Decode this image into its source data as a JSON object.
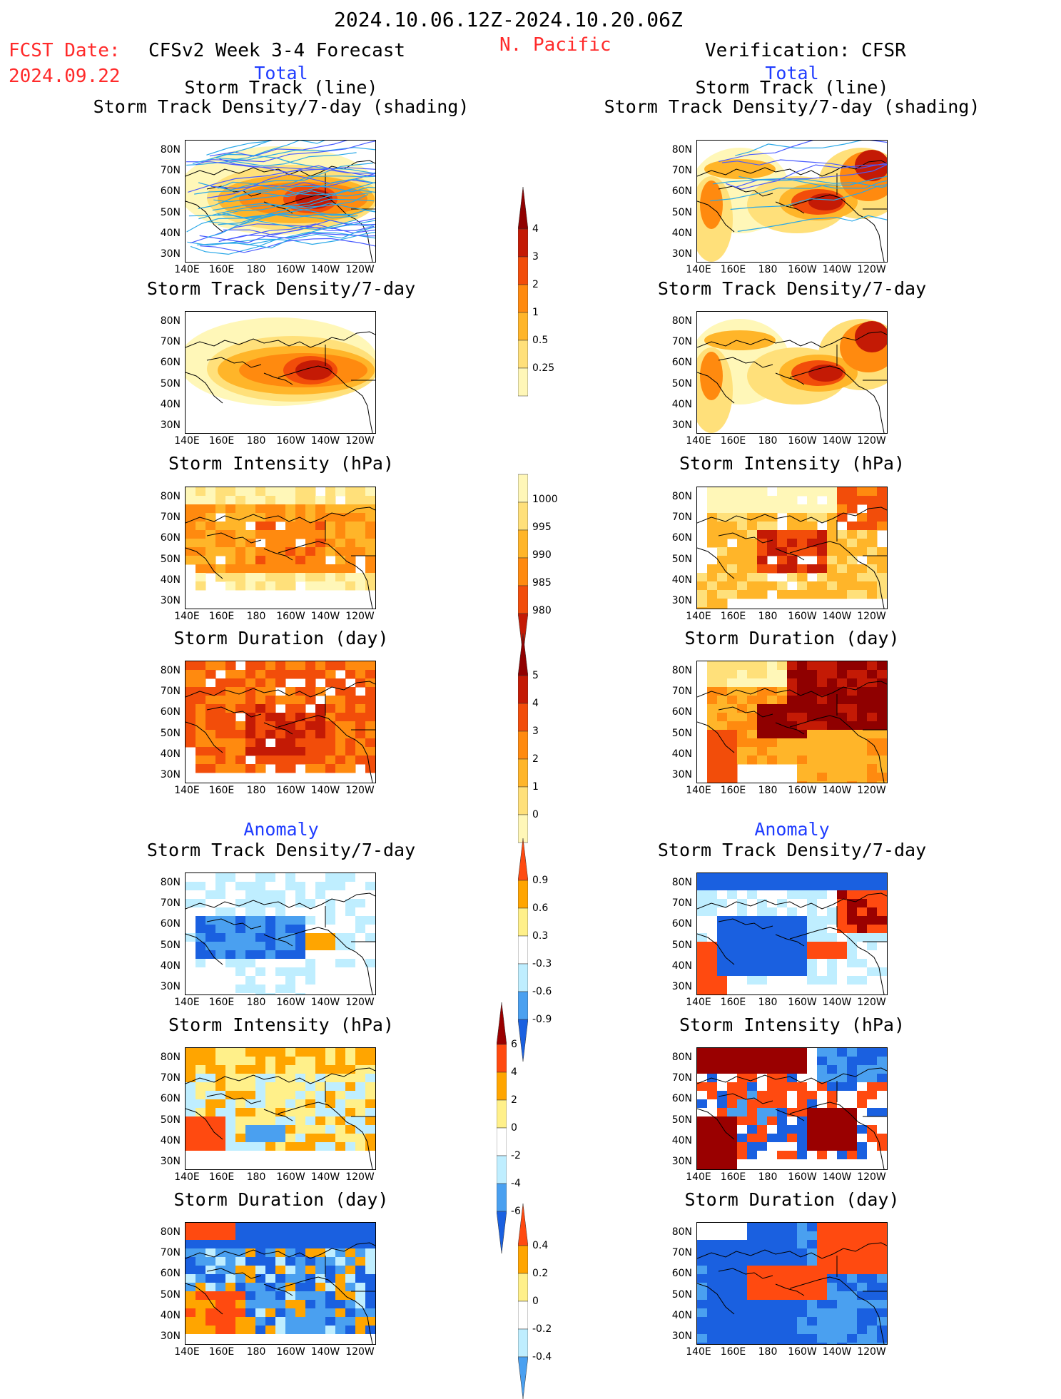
{
  "header": {
    "period": "2024.10.06.12Z-2024.10.20.06Z",
    "fcst_label": "FCST Date:",
    "fcst_date": "2024.09.22",
    "left_title": "CFSv2 Week 3-4 Forecast",
    "region": "N. Pacific",
    "right_title": "Verification: CFSR",
    "total_left": "Total",
    "total_right": "Total",
    "anomaly_left": "Anomaly",
    "anomaly_right": "Anomaly"
  },
  "panels": {
    "track_line_title1": "Storm Track (line)",
    "track_line_title2": "Storm Track Density/7-day (shading)",
    "density_title": "Storm Track Density/7-day",
    "intensity_title": "Storm Intensity (hPa)",
    "duration_title": "Storm Duration (day)"
  },
  "axes": {
    "lat": [
      "80N",
      "70N",
      "60N",
      "50N",
      "40N",
      "30N"
    ],
    "lon": [
      "140E",
      "160E",
      "180",
      "160W",
      "140W",
      "120W"
    ]
  },
  "colorbars": {
    "density_total": [
      "4",
      "3",
      "2",
      "1",
      "0.5",
      "0.25"
    ],
    "intensity_total": [
      "1000",
      "995",
      "990",
      "985",
      "980"
    ],
    "duration_total": [
      "5",
      "4",
      "3",
      "2",
      "1",
      "0"
    ],
    "density_anom": [
      "0.9",
      "0.6",
      "0.3",
      "-0.3",
      "-0.6",
      "-0.9"
    ],
    "intensity_anom": [
      "6",
      "4",
      "2",
      "0",
      "-2",
      "-4",
      "-6"
    ],
    "duration_anom": [
      "0.4",
      "0.2",
      "0",
      "-0.2",
      "-0.4"
    ]
  }
}
